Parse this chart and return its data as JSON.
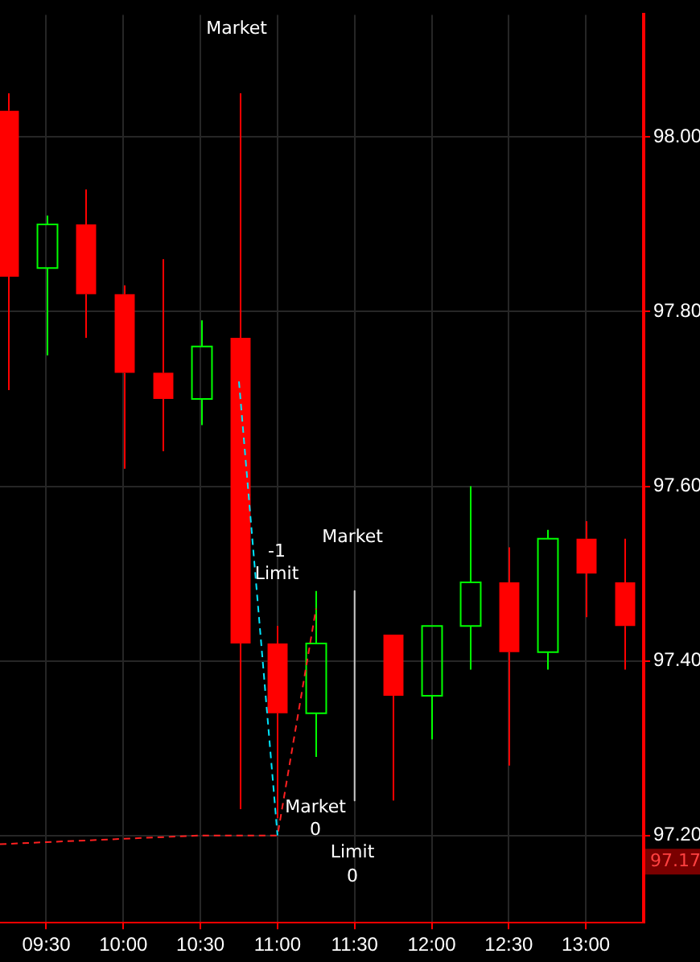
{
  "chart_data": {
    "type": "candlestick",
    "x": [
      9.25,
      9.5,
      9.75,
      10.0,
      10.25,
      10.5,
      10.75,
      11.0,
      11.25,
      11.75,
      12.0,
      12.25,
      12.5,
      12.75,
      13.0,
      13.25
    ],
    "ohlc": [
      [
        98.03,
        98.05,
        97.71,
        97.84
      ],
      [
        97.85,
        97.91,
        97.75,
        97.9
      ],
      [
        97.9,
        97.94,
        97.77,
        97.82
      ],
      [
        97.82,
        97.83,
        97.62,
        97.73
      ],
      [
        97.73,
        97.86,
        97.64,
        97.7
      ],
      [
        97.7,
        97.79,
        97.67,
        97.76
      ],
      [
        97.77,
        98.05,
        97.23,
        97.42
      ],
      [
        97.42,
        97.44,
        97.22,
        97.34
      ],
      [
        97.34,
        97.48,
        97.29,
        97.42
      ],
      [
        97.43,
        97.43,
        97.24,
        97.36
      ],
      [
        97.36,
        97.44,
        97.31,
        97.44
      ],
      [
        97.44,
        97.6,
        97.39,
        97.49
      ],
      [
        97.49,
        97.53,
        97.28,
        97.41
      ],
      [
        97.41,
        97.55,
        97.39,
        97.54
      ],
      [
        97.54,
        97.56,
        97.45,
        97.5
      ],
      [
        97.49,
        97.54,
        97.39,
        97.44
      ]
    ],
    "colors": [
      "#ff0000",
      "#00ff00",
      "#ff0000",
      "#ff0000",
      "#ff0000",
      "#00ff00",
      "#ff0000",
      "#ff0000",
      "#00ff00",
      "#ff0000",
      "#00ff00",
      "#00ff00",
      "#ff0000",
      "#00ff00",
      "#ff0000",
      "#ff0000"
    ],
    "series": [
      {
        "type": "line",
        "color": "#00e5ff",
        "line_style": "dashed",
        "x": [
          10.75,
          11.0
        ],
        "values": [
          97.72,
          97.2
        ]
      },
      {
        "type": "line",
        "color": "#ff2020",
        "line_style": "dashed",
        "x": [
          9.2,
          10.5,
          11.0,
          11.25
        ],
        "values": [
          97.19,
          97.2,
          97.2,
          97.46
        ]
      },
      {
        "type": "line",
        "color": "#c8c8c8",
        "line_style": "solid",
        "x": [
          11.5,
          11.5
        ],
        "values": [
          97.48,
          97.24
        ]
      }
    ],
    "xlim": [
      9.2,
      13.375
    ],
    "xticks": [
      {
        "value": 9.5,
        "label": "09:30"
      },
      {
        "value": 10.0,
        "label": "10:00"
      },
      {
        "value": 10.5,
        "label": "10:30"
      },
      {
        "value": 11.0,
        "label": "11:00"
      },
      {
        "value": 11.5,
        "label": "11:30"
      },
      {
        "value": 12.0,
        "label": "12:00"
      },
      {
        "value": 12.5,
        "label": "12:30"
      },
      {
        "value": 13.0,
        "label": "13:00"
      }
    ],
    "ylim": [
      97.1,
      98.14
    ],
    "yticks": [
      {
        "value": 97.2,
        "label": "97.20"
      },
      {
        "value": 97.4,
        "label": "97.40"
      },
      {
        "value": 97.6,
        "label": "97.60"
      },
      {
        "value": 97.8,
        "label": "97.80"
      },
      {
        "value": 98.0,
        "label": "98.00"
      }
    ],
    "grid": true,
    "legend": false,
    "annotations": [
      "Market",
      "-1",
      "Limit",
      "Market",
      "Market",
      "0",
      "Limit",
      "0",
      {
        "text": "97.17",
        "y": 97.17
      }
    ]
  }
}
